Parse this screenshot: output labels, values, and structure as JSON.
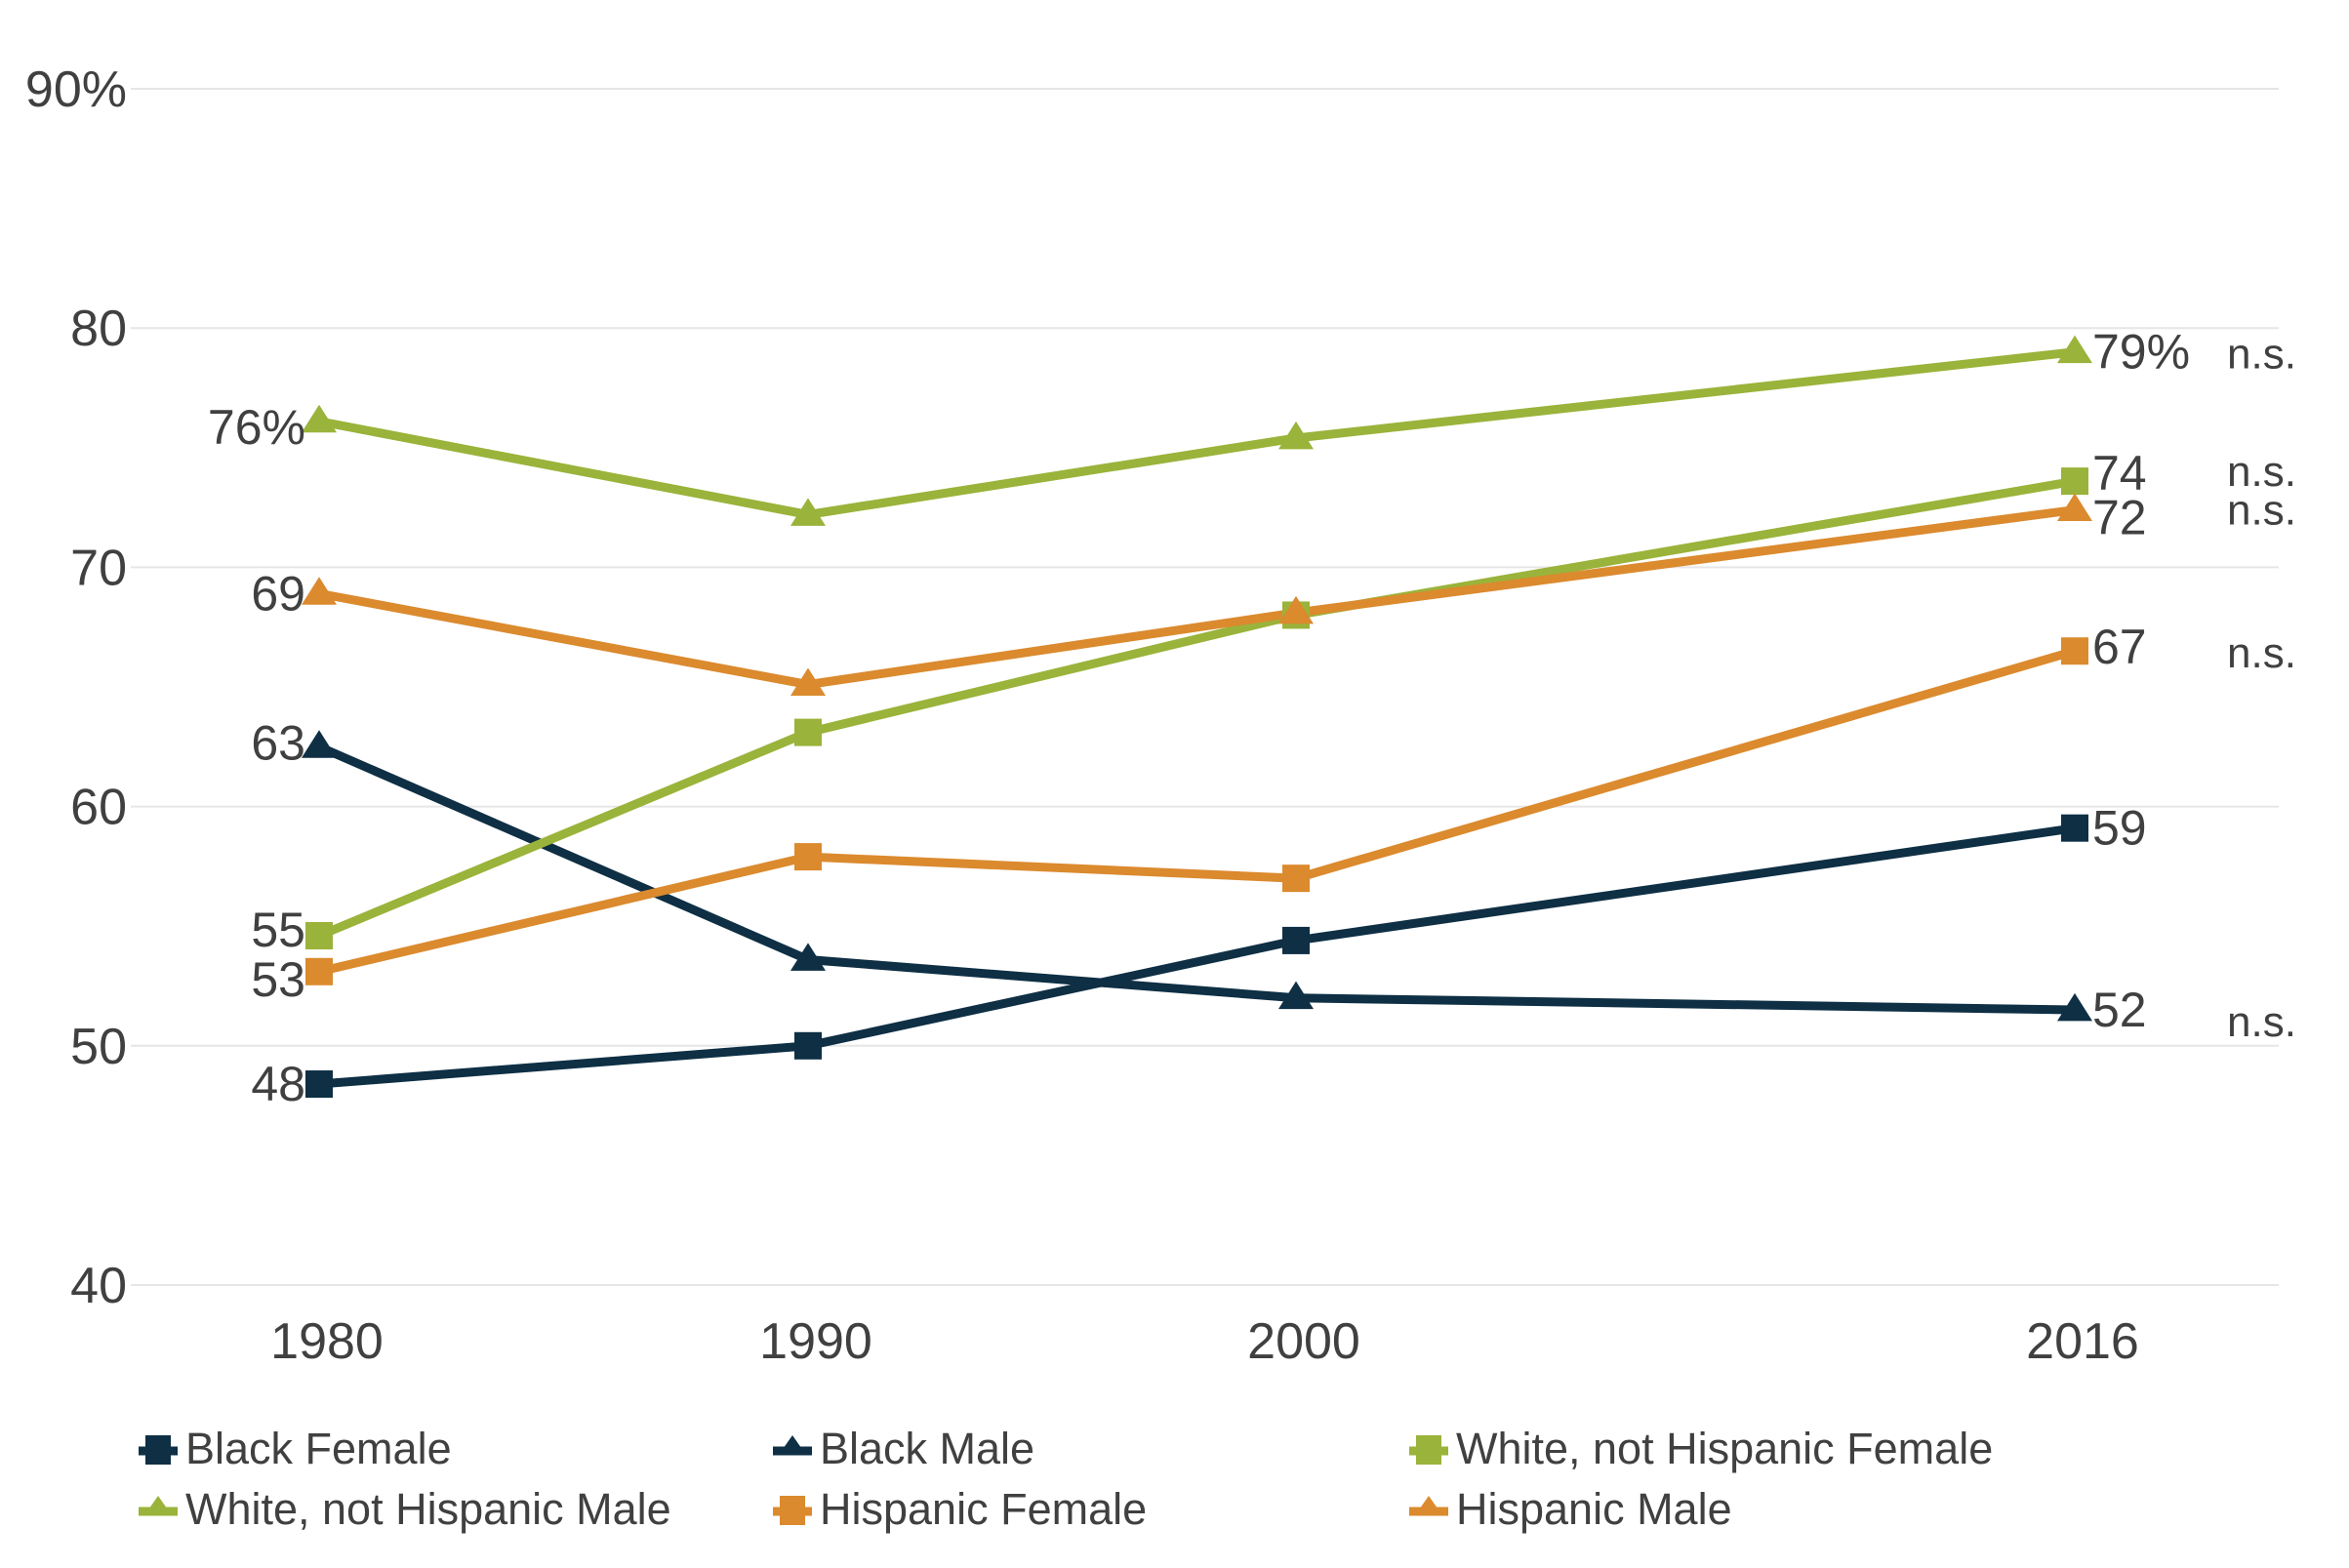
{
  "chart_data": {
    "type": "line",
    "title": "",
    "xlabel": "",
    "ylabel": "",
    "categories": [
      "1980",
      "1990",
      "2000",
      "2016"
    ],
    "ylim": [
      40,
      90
    ],
    "y_ticks": [
      {
        "value": 90,
        "label": "90%"
      },
      {
        "value": 80,
        "label": "80"
      },
      {
        "value": 70,
        "label": "70"
      },
      {
        "value": 60,
        "label": "60"
      },
      {
        "value": 50,
        "label": "50"
      },
      {
        "value": 40,
        "label": "40"
      }
    ],
    "grid": true,
    "legend_position": "bottom",
    "series": [
      {
        "name": "Black Female",
        "color": "#0e2f44",
        "marker": "square",
        "values": [
          48.4,
          50.0,
          54.4,
          59.1
        ],
        "start_label": "48",
        "end_label": "59",
        "significance": ""
      },
      {
        "name": "Black Male",
        "color": "#0e2f44",
        "marker": "triangle",
        "values": [
          62.5,
          53.6,
          52.0,
          51.5
        ],
        "start_label": "63",
        "end_label": "52",
        "significance": "n.s."
      },
      {
        "name": "White, not Hispanic Female",
        "color": "#9ab33a",
        "marker": "square",
        "values": [
          54.6,
          63.1,
          68.0,
          73.6
        ],
        "start_label": "55",
        "end_label": "74",
        "significance": "n.s."
      },
      {
        "name": "White, not Hispanic Male",
        "color": "#9ab33a",
        "marker": "triangle",
        "values": [
          76.1,
          72.2,
          75.4,
          79.0
        ],
        "start_label": "76%",
        "end_label": "79%",
        "significance": "n.s."
      },
      {
        "name": "Hispanic Female",
        "color": "#db8a2e",
        "marker": "square",
        "values": [
          53.1,
          57.9,
          57.0,
          66.5
        ],
        "start_label": "53",
        "end_label": "67",
        "significance": "n.s."
      },
      {
        "name": "Hispanic Male",
        "color": "#db8a2e",
        "marker": "triangle",
        "values": [
          68.9,
          65.1,
          68.1,
          72.4
        ],
        "start_label": "69",
        "end_label": "72",
        "significance": "n.s."
      }
    ]
  }
}
